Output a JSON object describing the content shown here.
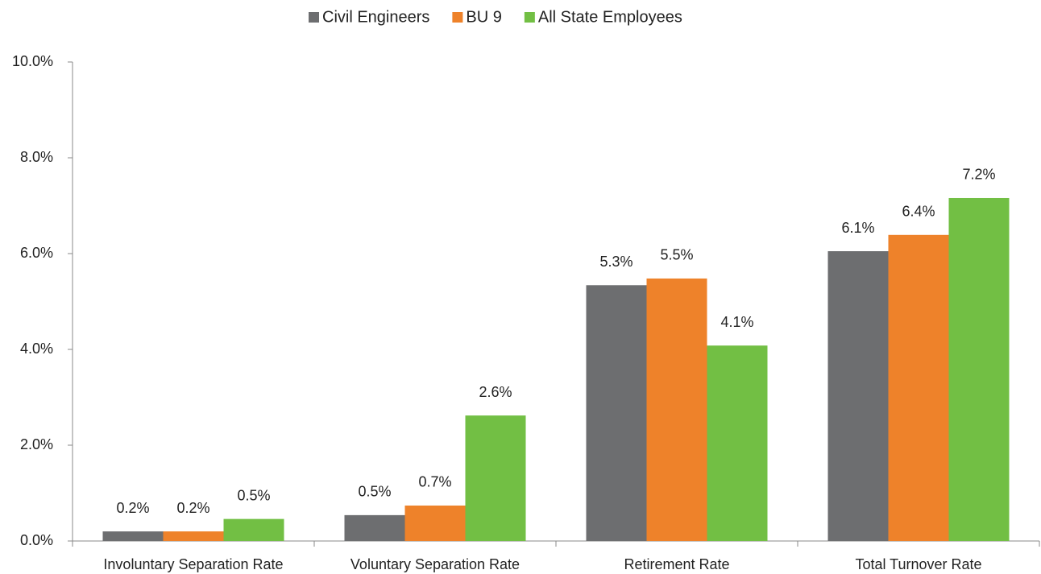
{
  "chart_data": {
    "type": "bar",
    "categories": [
      "Involuntary Separation Rate",
      "Voluntary Separation Rate",
      "Retirement Rate",
      "Total Turnover Rate"
    ],
    "series": [
      {
        "name": "Civil Engineers",
        "color": "#6d6e70",
        "values": [
          0.2,
          0.54,
          5.34,
          6.05
        ],
        "value_labels": [
          "0.2%",
          "0.5%",
          "5.3%",
          "6.1%"
        ]
      },
      {
        "name": "BU 9",
        "color": "#ee822a",
        "values": [
          0.2,
          0.74,
          5.48,
          6.39
        ],
        "value_labels": [
          "0.2%",
          "0.7%",
          "5.5%",
          "6.4%"
        ]
      },
      {
        "name": "All State Employees",
        "color": "#72bf44",
        "values": [
          0.46,
          2.62,
          4.08,
          7.16
        ],
        "value_labels": [
          "0.5%",
          "2.6%",
          "4.1%",
          "7.2%"
        ]
      }
    ],
    "ylim": [
      0,
      10
    ],
    "yticks": [
      {
        "value": 0,
        "label": "0.0%"
      },
      {
        "value": 2,
        "label": "2.0%"
      },
      {
        "value": 4,
        "label": "4.0%"
      },
      {
        "value": 6,
        "label": "6.0%"
      },
      {
        "value": 8,
        "label": "8.0%"
      },
      {
        "value": 10,
        "label": "10.0%"
      }
    ],
    "legend": "top"
  }
}
